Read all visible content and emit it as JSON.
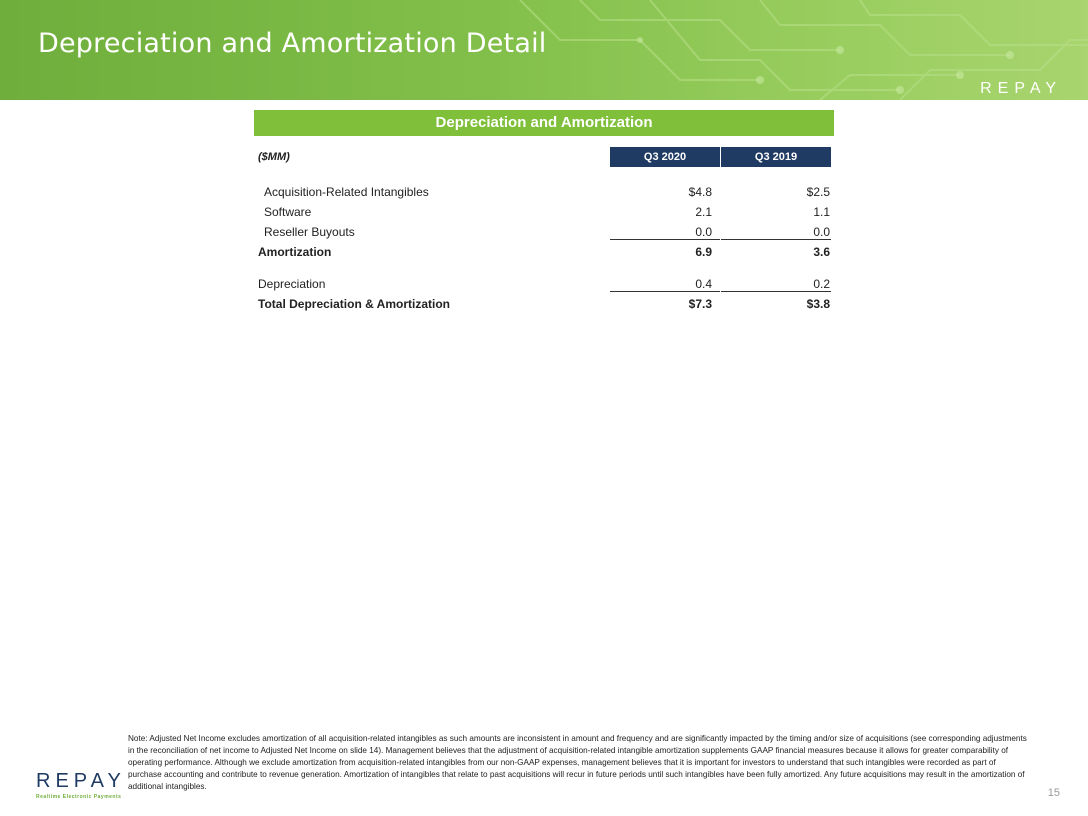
{
  "header": {
    "title": "Depreciation and Amortization Detail",
    "logo": "REPAY"
  },
  "table": {
    "title": "Depreciation and Amortization",
    "units": "($MM)",
    "columns": [
      "Q3 2020",
      "Q3 2019"
    ],
    "rows": [
      {
        "label": "Acquisition-Related Intangibles",
        "v1": "$4.8",
        "v2": "$2.5"
      },
      {
        "label": "Software",
        "v1": "2.1",
        "v2": "1.1"
      },
      {
        "label": "Reseller Buyouts",
        "v1": "0.0",
        "v2": "0.0"
      },
      {
        "label": "Amortization",
        "v1": "6.9",
        "v2": "3.6"
      },
      {
        "label": "Depreciation",
        "v1": "0.4",
        "v2": "0.2"
      },
      {
        "label": "Total Depreciation & Amortization",
        "v1": "$7.3",
        "v2": "$3.8"
      }
    ]
  },
  "footnote": "Note: Adjusted Net Income excludes amortization of all acquisition-related intangibles as such amounts are inconsistent in amount and frequency and are significantly impacted by the timing and/or size of acquisitions (see corresponding adjustments in the reconciliation of net income to Adjusted Net Income on slide 14). Management believes that the adjustment of acquisition-related intangible amortization supplements GAAP financial measures because it allows for greater comparability of operating performance. Although we exclude amortization from acquisition-related intangibles from our non-GAAP expenses, management believes that it is important for investors to understand that such intangibles were recorded as part of purchase accounting and contribute to revenue generation. Amortization of intangibles that relate to past acquisitions will recur in future periods until such intangibles have been fully amortized. Any future acquisitions may result in the amortization of additional intangibles.",
  "footer": {
    "logo": "REPAY",
    "tagline": "Realtime Electronic Payments",
    "page_number": "15"
  }
}
